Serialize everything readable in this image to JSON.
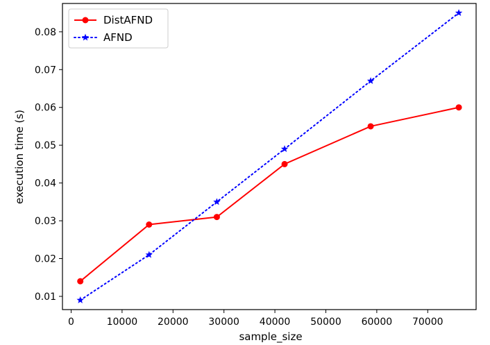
{
  "chart_data": {
    "type": "line",
    "title": "",
    "xlabel": "sample_size",
    "ylabel": "execution time (s)",
    "xlim": [
      -1700,
      79500
    ],
    "ylim": [
      0.0065,
      0.0875
    ],
    "xticks": [
      0,
      10000,
      20000,
      30000,
      40000,
      50000,
      60000,
      70000
    ],
    "yticks": [
      0.01,
      0.02,
      0.03,
      0.04,
      0.05,
      0.06,
      0.07,
      0.08
    ],
    "grid": false,
    "legend_position": "top-left",
    "series": [
      {
        "name": "DistAFND",
        "color": "#ff0000",
        "line_style": "solid",
        "marker": "circle",
        "x": [
          1800,
          15300,
          28600,
          41900,
          58800,
          76100
        ],
        "y": [
          0.014,
          0.029,
          0.031,
          0.045,
          0.055,
          0.06
        ]
      },
      {
        "name": "AFND",
        "color": "#0000ff",
        "line_style": "dotted",
        "marker": "star",
        "x": [
          1800,
          15300,
          28600,
          41900,
          58800,
          76100
        ],
        "y": [
          0.009,
          0.021,
          0.035,
          0.049,
          0.067,
          0.085
        ]
      }
    ]
  }
}
